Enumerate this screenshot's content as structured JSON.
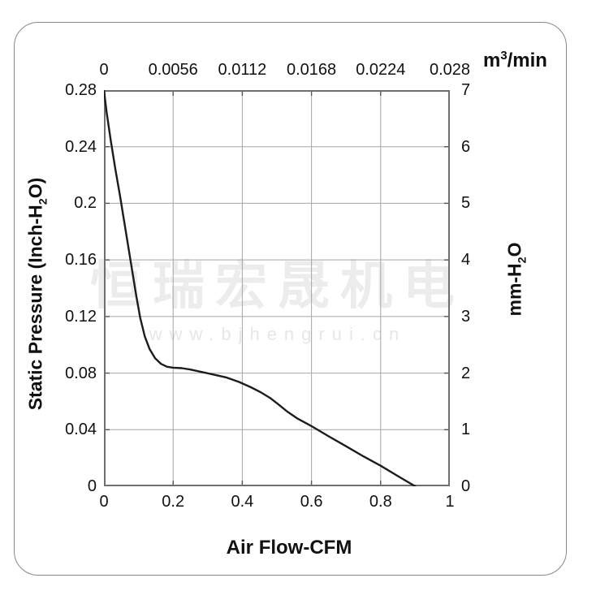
{
  "watermark": {
    "cn_text": "恒瑞宏晟机电",
    "url_text": "www.bjhengrui.cn",
    "cn_color": "#ececec",
    "url_color": "#e7e7e7"
  },
  "chart_data": {
    "type": "line",
    "title": "",
    "grid": true,
    "x_axis_bottom": {
      "label": "Air Flow-CFM",
      "ticks": [
        "0",
        "0.2",
        "0.4",
        "0.6",
        "0.8",
        "1"
      ],
      "range": [
        0,
        1
      ]
    },
    "x_axis_top": {
      "label_parts": {
        "pre": "m",
        "sup": "3",
        "post": "/min"
      },
      "ticks": [
        "0",
        "0.0056",
        "0.0112",
        "0.0168",
        "0.0224",
        "0.028"
      ],
      "range": [
        0,
        0.0283
      ]
    },
    "y_axis_left": {
      "label_parts": {
        "pre": "Static Pressure (Inch-H",
        "sub": "2",
        "post": "O)"
      },
      "ticks": [
        "0.28",
        "0.24",
        "0.2",
        "0.16",
        "0.12",
        "0.08",
        "0.04",
        "0"
      ],
      "range": [
        0,
        0.28
      ]
    },
    "y_axis_right": {
      "label_parts": {
        "pre": "mm-H",
        "sub": "2",
        "post": "O"
      },
      "ticks": [
        "7",
        "6",
        "5",
        "4",
        "3",
        "2",
        "1",
        "0"
      ],
      "range": [
        0,
        7
      ]
    },
    "colors": {
      "curve": "#1c1c1c",
      "grid": "#a6a6a6",
      "border": "#6f6f6f",
      "tick_mark": "#555555",
      "text": "#111111"
    },
    "series": [
      {
        "name": "static-pressure-vs-airflow",
        "x_unit": "CFM",
        "y_unit": "Inch-H2O",
        "points": [
          [
            0.0,
            0.28
          ],
          [
            0.008,
            0.264
          ],
          [
            0.02,
            0.244
          ],
          [
            0.033,
            0.224
          ],
          [
            0.046,
            0.206
          ],
          [
            0.058,
            0.188
          ],
          [
            0.07,
            0.17
          ],
          [
            0.082,
            0.152
          ],
          [
            0.094,
            0.134
          ],
          [
            0.105,
            0.119
          ],
          [
            0.118,
            0.106
          ],
          [
            0.132,
            0.097
          ],
          [
            0.148,
            0.0905
          ],
          [
            0.165,
            0.0865
          ],
          [
            0.182,
            0.0845
          ],
          [
            0.2,
            0.0838
          ],
          [
            0.225,
            0.0835
          ],
          [
            0.25,
            0.0825
          ],
          [
            0.285,
            0.0807
          ],
          [
            0.32,
            0.0788
          ],
          [
            0.355,
            0.0768
          ],
          [
            0.39,
            0.0738
          ],
          [
            0.425,
            0.07
          ],
          [
            0.455,
            0.0662
          ],
          [
            0.48,
            0.0625
          ],
          [
            0.505,
            0.0578
          ],
          [
            0.53,
            0.0528
          ],
          [
            0.56,
            0.0478
          ],
          [
            0.6,
            0.0425
          ],
          [
            0.65,
            0.0353
          ],
          [
            0.7,
            0.0283
          ],
          [
            0.75,
            0.0212
          ],
          [
            0.8,
            0.0145
          ],
          [
            0.85,
            0.0072
          ],
          [
            0.9,
            0.0
          ]
        ]
      }
    ]
  }
}
